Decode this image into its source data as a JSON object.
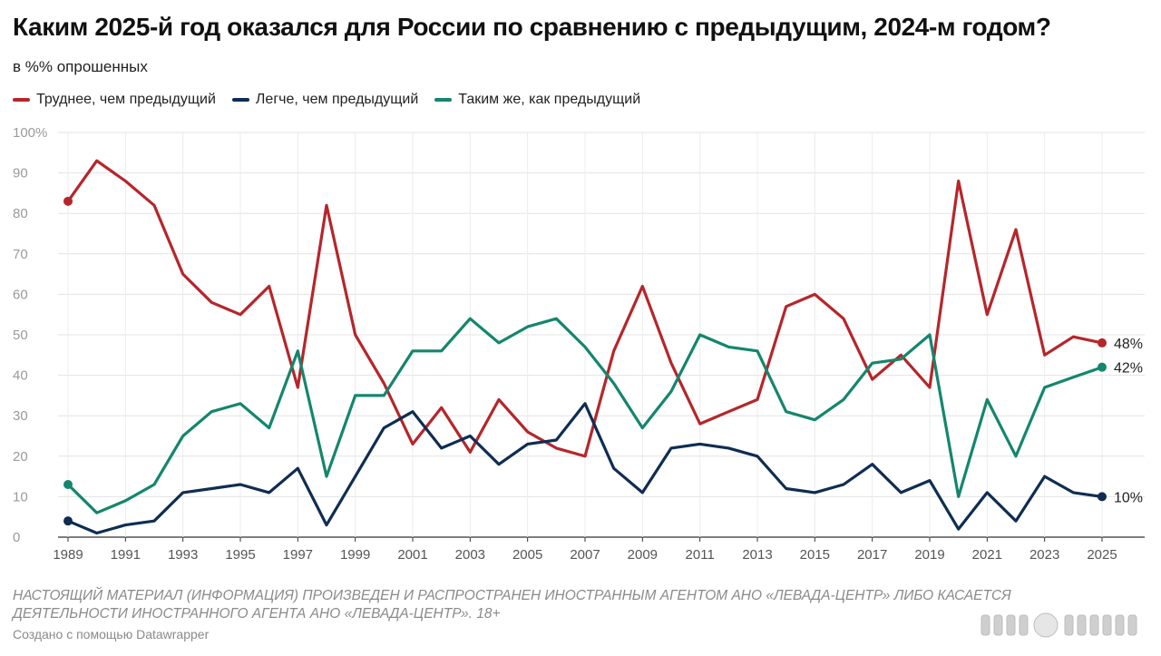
{
  "title": "Каким 2025-й год оказался для России по сравнению с предыдущим, 2024-м годом?",
  "subtitle": "в %% опрошенных",
  "note": "НАСТОЯЩИЙ МАТЕРИАЛ (ИНФОРМАЦИЯ) ПРОИЗВЕДЕН И РАСПРОСТРАНЕН ИНОСТРАННЫМ АГЕНТОМ АНО «ЛЕВАДА-ЦЕНТР» ЛИБО КАСАЕТСЯ ДЕЯТЕЛЬНОСТИ ИНОСТРАННОГО АГЕНТА АНО «ЛЕВАДА-ЦЕНТР». 18+",
  "credit": "Создано с помощью Datawrapper",
  "chart_data": {
    "type": "line",
    "title": "Каким 2025-й год оказался для России по сравнению с предыдущим, 2024-м годом?",
    "xlabel": "",
    "ylabel": "в %% опрошенных",
    "ylim": [
      0,
      100
    ],
    "yticks": [
      0,
      10,
      20,
      30,
      40,
      50,
      60,
      70,
      80,
      90,
      100
    ],
    "ytick_labels": [
      "0",
      "10",
      "20",
      "30",
      "40",
      "50",
      "60",
      "70",
      "80",
      "90",
      "100%"
    ],
    "xlim": [
      1989,
      2025
    ],
    "xticks": [
      1989,
      1991,
      1993,
      1995,
      1997,
      1999,
      2001,
      2003,
      2005,
      2007,
      2009,
      2011,
      2013,
      2015,
      2017,
      2019,
      2021,
      2023,
      2025
    ],
    "grid": true,
    "legend_position": "top-left",
    "x": [
      1989,
      1990,
      1991,
      1992,
      1993,
      1994,
      1995,
      1996,
      1997,
      1998,
      1999,
      2000,
      2001,
      2002,
      2003,
      2004,
      2005,
      2006,
      2007,
      2008,
      2009,
      2010,
      2011,
      2012,
      2013,
      2014,
      2015,
      2016,
      2017,
      2018,
      2019,
      2020,
      2021,
      2022,
      2023,
      2024,
      2025
    ],
    "series": [
      {
        "name": "Труднее, чем предыдущий",
        "color": "#b5262b",
        "end_label": "48%",
        "values": [
          83,
          93,
          88,
          82,
          65,
          58,
          55,
          62,
          37,
          82,
          50,
          38,
          23,
          32,
          21,
          34,
          26,
          22,
          20,
          46,
          62,
          43,
          28,
          31,
          34,
          57,
          60,
          54,
          39,
          45,
          37,
          88,
          55,
          76,
          45,
          49.5,
          48
        ]
      },
      {
        "name": "Легче, чем предыдущий",
        "color": "#0f2d52",
        "end_label": "10%",
        "values": [
          4,
          1,
          3,
          4,
          11,
          12,
          13,
          11,
          17,
          3,
          15,
          27,
          31,
          22,
          25,
          18,
          23,
          24,
          33,
          17,
          11,
          22,
          23,
          22,
          20,
          12,
          11,
          13,
          18,
          11,
          14,
          2,
          11,
          4,
          15,
          11,
          10
        ]
      },
      {
        "name": "Таким  же, как предыдущий",
        "color": "#14866d",
        "end_label": "42%",
        "values": [
          13,
          6,
          9,
          13,
          25,
          31,
          33,
          27,
          46,
          15,
          35,
          35,
          46,
          46,
          54,
          48,
          52,
          54,
          47,
          38,
          27,
          36,
          50,
          47,
          46,
          31,
          29,
          34,
          43,
          44,
          50,
          10,
          34,
          20,
          37,
          39.5,
          42
        ]
      }
    ]
  }
}
